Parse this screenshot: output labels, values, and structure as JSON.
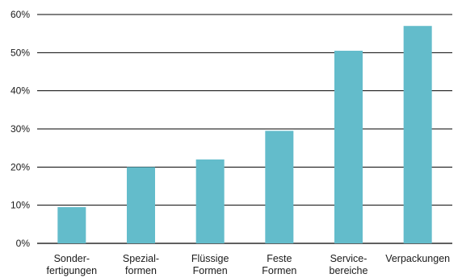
{
  "chart_data": {
    "type": "bar",
    "categories": [
      [
        "Sonder-",
        "fertigungen"
      ],
      [
        "Spezial-",
        "formen"
      ],
      [
        "Flüssige",
        "Formen"
      ],
      [
        "Feste",
        "Formen"
      ],
      [
        "Service-",
        "bereiche"
      ],
      [
        "Verpackungen"
      ]
    ],
    "values": [
      9.5,
      20,
      22,
      29.5,
      50.5,
      57
    ],
    "ylim": [
      0,
      60
    ],
    "yticks": [
      0,
      10,
      20,
      30,
      40,
      50,
      60
    ],
    "ytick_suffix": "%",
    "grid": true,
    "bar_color": "#63bccb",
    "title": "",
    "xlabel": "",
    "ylabel": ""
  }
}
